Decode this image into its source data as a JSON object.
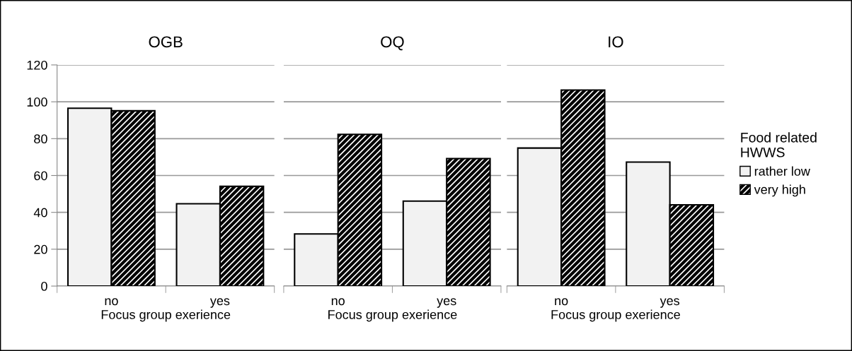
{
  "chart_data": [
    {
      "type": "bar",
      "title": "OGB",
      "categories": [
        "no",
        "yes"
      ],
      "xlabel": "Focus group exerience",
      "ylim": [
        0,
        120
      ],
      "yticks": [
        0,
        20,
        40,
        60,
        80,
        100,
        120
      ],
      "grid": "y",
      "legend": false,
      "series": [
        {
          "color": "#f2f2f2",
          "values": [
            96.5,
            44.7
          ]
        },
        {
          "color": "#000000",
          "values": [
            95.1,
            54.1
          ]
        }
      ]
    },
    {
      "type": "bar",
      "title": "OQ",
      "categories": [
        "no",
        "yes"
      ],
      "xlabel": "Focus group exerience",
      "ylim": [
        0,
        120
      ],
      "yticks": [
        0,
        20,
        40,
        60,
        80,
        100,
        120
      ],
      "grid": "y",
      "legend": false,
      "tick_labels": "x",
      "series": [
        {
          "color": "#f2f2f2",
          "values": [
            28.3,
            46.1
          ]
        },
        {
          "color": "#000000",
          "values": [
            82.3,
            69.2
          ]
        }
      ]
    },
    {
      "type": "bar",
      "title": "IO",
      "categories": [
        "no",
        "yes"
      ],
      "xlabel": "Focus group exerience",
      "ylim": [
        0,
        120
      ],
      "yticks": [
        0,
        20,
        40,
        60,
        80,
        100,
        120
      ],
      "grid": "y",
      "legend": "right",
      "legend_title": "Food related\nHWWS",
      "tick_labels": "x",
      "series": [
        {
          "name": "rather low",
          "color": "#f2f2f2",
          "values": [
            74.9,
            67.3
          ]
        },
        {
          "name": "very high",
          "color": "#000000",
          "values": [
            106.4,
            44.1
          ]
        }
      ]
    }
  ]
}
